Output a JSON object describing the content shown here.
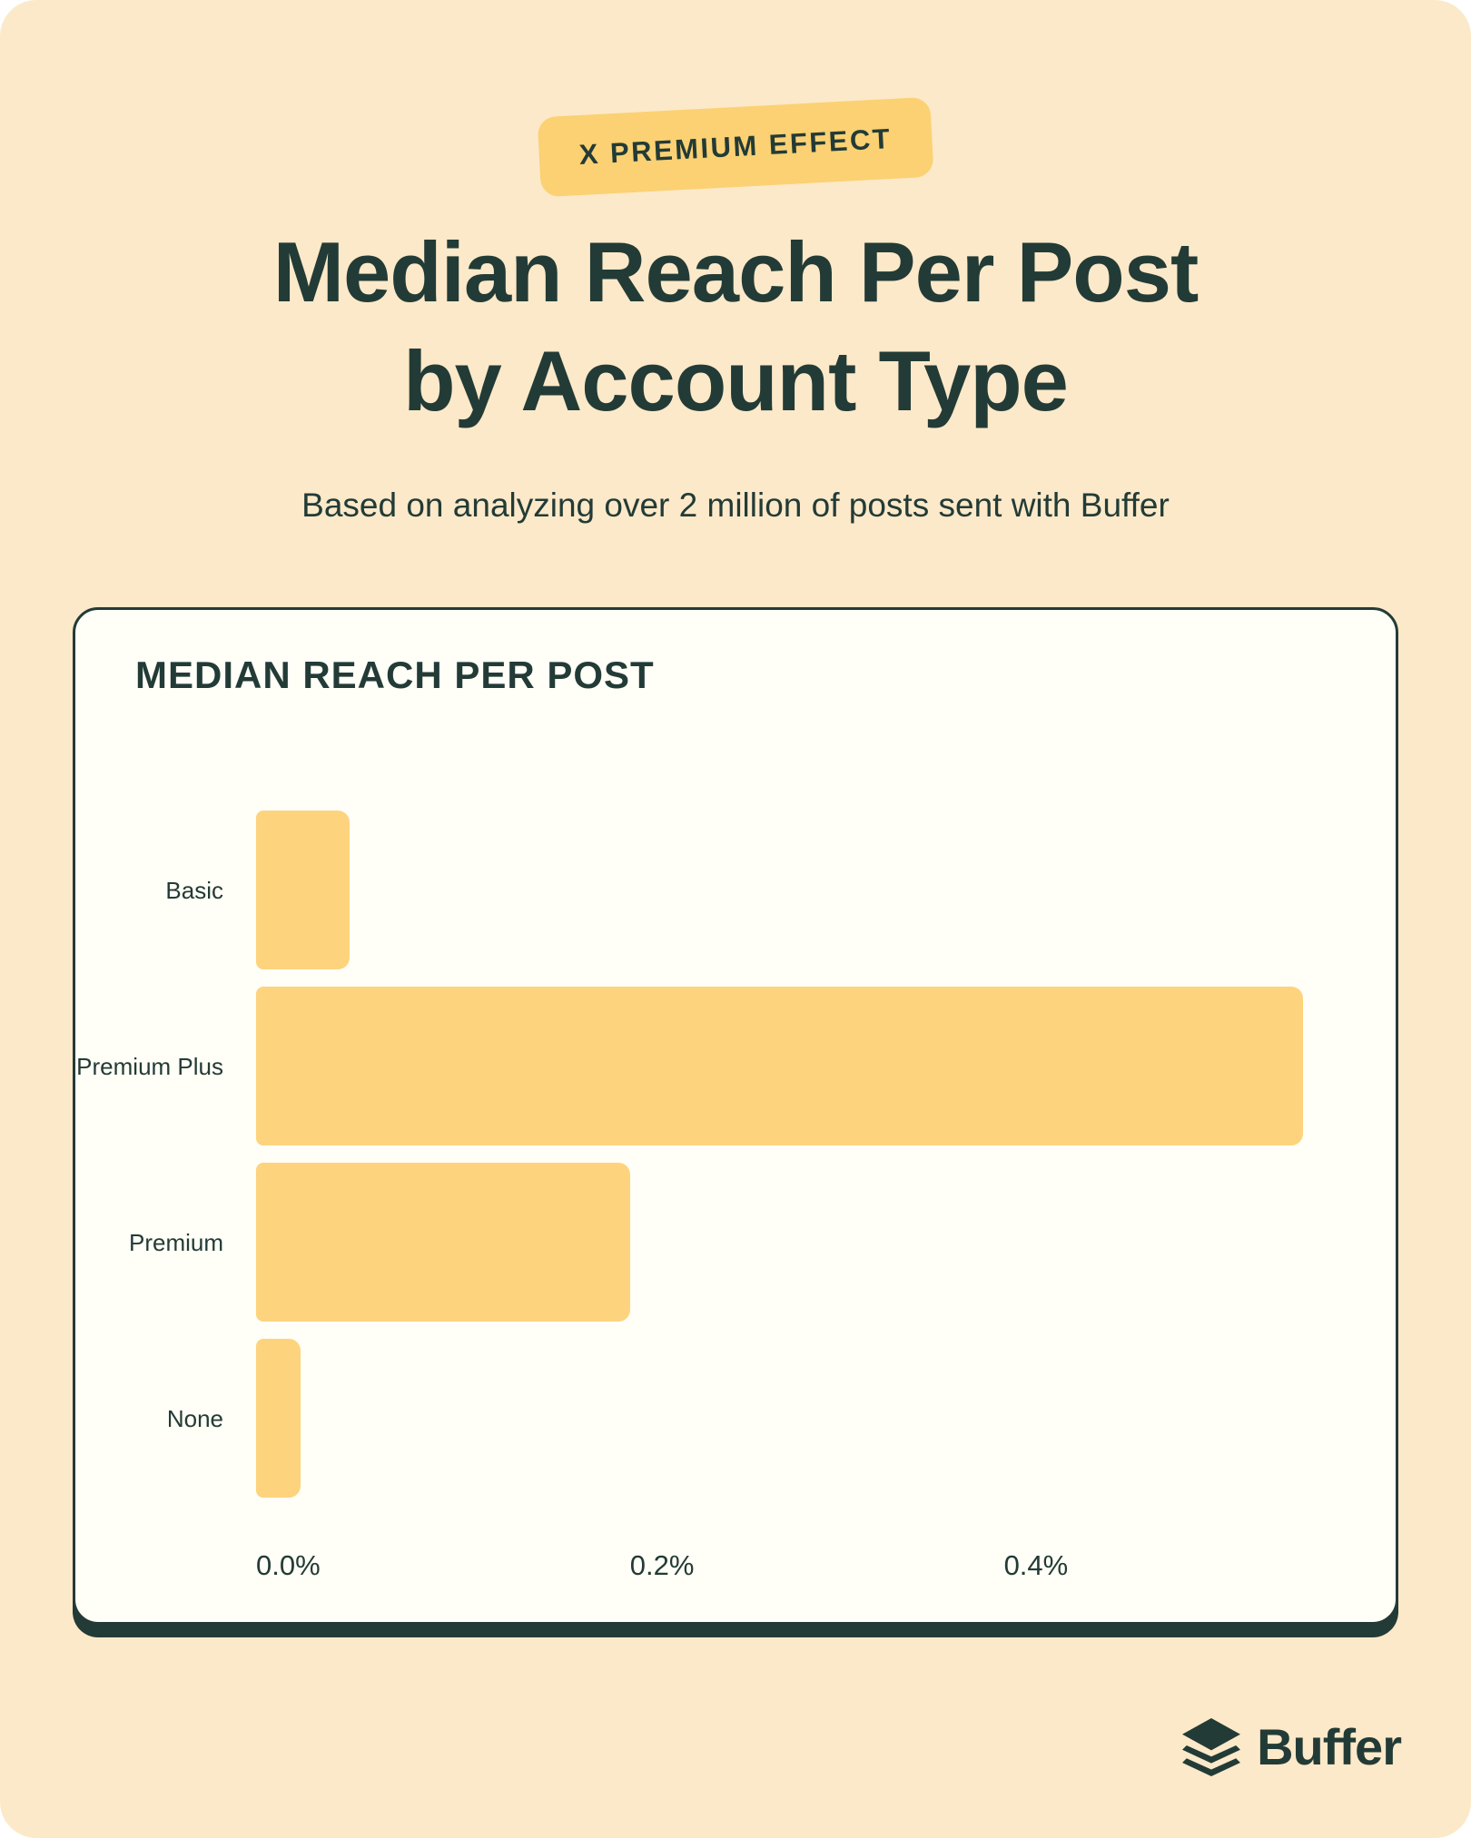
{
  "page": {
    "badge": "X PREMIUM EFFECT",
    "title_line1": "Median Reach Per Post",
    "title_line2": "by Account Type",
    "subtitle": "Based on analyzing over 2 million of posts sent with Buffer",
    "brand": "Buffer"
  },
  "colors": {
    "background": "#FCE9C9",
    "badge_yellow": "#FBD173",
    "bar_yellow": "#FDD47D",
    "dark_green": "#233B36",
    "card_background": "#FFFEF7"
  },
  "chart_data": {
    "type": "bar",
    "orientation": "horizontal",
    "title": "MEDIAN REACH PER POST",
    "categories": [
      "Basic",
      "Premium Plus",
      "Premium",
      "None"
    ],
    "values": [
      0.05,
      0.56,
      0.2,
      0.024
    ],
    "unit": "%",
    "xlabel": "",
    "ylabel": "",
    "x_ticks": [
      "0.0%",
      "0.2%",
      "0.4%"
    ],
    "x_tick_values": [
      0,
      0.2,
      0.4
    ],
    "xlim": [
      0,
      0.577
    ],
    "grid": false,
    "legend": false,
    "bar_color": "#FDD47D"
  }
}
